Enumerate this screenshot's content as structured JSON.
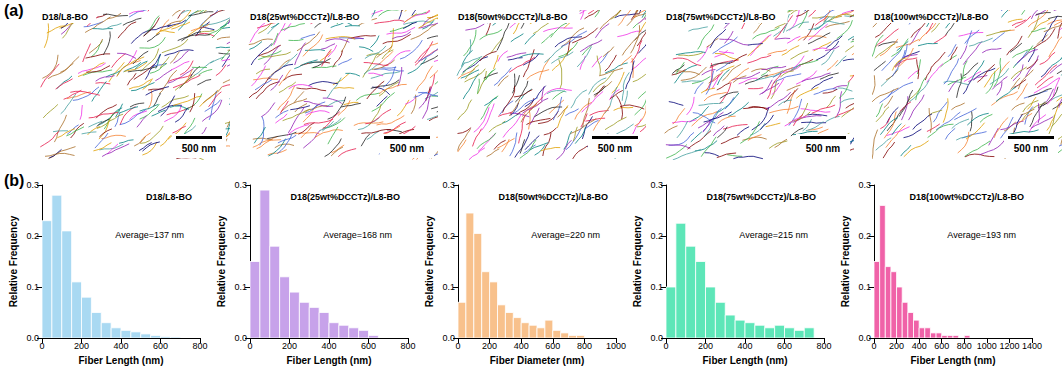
{
  "panel_labels": [
    "(a)",
    "(b)"
  ],
  "images": [
    {
      "title": "D18/L8-BO",
      "scale_bar": "500 nm"
    },
    {
      "title": "D18(25wt%DCCTz)/L8-BO",
      "scale_bar": "500 nm"
    },
    {
      "title": "D18(50wt%DCCTz)/L8-BO",
      "scale_bar": "500 nm"
    },
    {
      "title": "D18(75wt%DCCTz)/L8-BO",
      "scale_bar": "500 nm"
    },
    {
      "title": "D18(100wt%DCCTz)/L8-BO",
      "scale_bar": "500 nm"
    }
  ],
  "chart_data": [
    {
      "type": "histogram",
      "title": "D18/L8-BO",
      "annotation": "Average=137 nm",
      "color": "#a9d9f2",
      "xlabel": "Fiber Length (nm)",
      "ylabel": "Relative Frequency",
      "bins": [
        0,
        50,
        100,
        150,
        200,
        250,
        300,
        350,
        400,
        450,
        500,
        550,
        600,
        650,
        700
      ],
      "counts": [
        0.23,
        0.28,
        0.21,
        0.11,
        0.08,
        0.05,
        0.03,
        0.02,
        0.015,
        0.012,
        0.008,
        0.005,
        0.003,
        0.002
      ],
      "xlim": [
        0,
        800
      ],
      "xticks": [
        0,
        200,
        400,
        600,
        800
      ],
      "ylim": [
        0,
        0.3
      ],
      "yticks": [
        {
          "value": 0,
          "label": "0.0"
        },
        0.1,
        0.2,
        0.3
      ]
    },
    {
      "type": "histogram",
      "title": "D18(25wt%DCCTz)/L8-BO",
      "annotation": "Average=168 nm",
      "color": "#c7a2ea",
      "xlabel": "Fiber Length (nm)",
      "ylabel": "Relative Frequency",
      "bins": [
        0,
        50,
        100,
        150,
        200,
        250,
        300,
        350,
        400,
        450,
        500,
        550,
        600,
        650
      ],
      "counts": [
        0.15,
        0.29,
        0.18,
        0.12,
        0.09,
        0.07,
        0.06,
        0.05,
        0.03,
        0.025,
        0.02,
        0.015,
        0.005
      ],
      "xlim": [
        0,
        800
      ],
      "xticks": [
        0,
        200,
        400,
        600,
        800
      ],
      "ylim": [
        0,
        0.3
      ],
      "yticks": [
        {
          "value": 0,
          "label": "0.0"
        },
        0.1,
        0.2,
        0.3
      ]
    },
    {
      "type": "histogram",
      "title": "D18(50wt%DCCTz)/L8-BO",
      "annotation": "Average=220 nm",
      "color": "#f8c18c",
      "xlabel": "Fiber Diameter (nm)",
      "ylabel": "Relative Frequency",
      "bins": [
        0,
        50,
        100,
        150,
        200,
        250,
        300,
        350,
        400,
        450,
        500,
        550,
        600,
        650,
        700,
        750,
        800
      ],
      "counts": [
        0.07,
        0.245,
        0.205,
        0.13,
        0.11,
        0.065,
        0.05,
        0.04,
        0.03,
        0.025,
        0.02,
        0.035,
        0.015,
        0.01,
        0.005,
        0.005
      ],
      "xlim": [
        0,
        1000
      ],
      "xticks": [
        0,
        200,
        400,
        600,
        800,
        1000
      ],
      "ylim": [
        0,
        0.3
      ],
      "yticks": [
        {
          "value": 0,
          "label": "0.0"
        },
        0.1,
        0.2,
        0.3
      ]
    },
    {
      "type": "histogram",
      "title": "D18(75wt%DCCTz)/L8-BO",
      "annotation": "Average=215 nm",
      "color": "#5de6b8",
      "xlabel": "Fiber Length (nm)",
      "ylabel": "Relative Frequency",
      "bins": [
        0,
        50,
        100,
        150,
        200,
        250,
        300,
        350,
        400,
        450,
        500,
        550,
        600,
        650,
        700,
        750
      ],
      "counts": [
        0.1,
        0.225,
        0.18,
        0.15,
        0.1,
        0.07,
        0.045,
        0.035,
        0.03,
        0.025,
        0.02,
        0.025,
        0.02,
        0.015,
        0.02
      ],
      "xlim": [
        0,
        800
      ],
      "xticks": [
        0,
        200,
        400,
        600,
        800
      ],
      "ylim": [
        0,
        0.3
      ],
      "yticks": [
        {
          "value": 0,
          "label": "0.0"
        },
        0.1,
        0.2,
        0.3
      ]
    },
    {
      "type": "histogram",
      "title": "D18(100wt%DCCTz)/L8-BO",
      "annotation": "Average=193 nm",
      "color": "#f062a8",
      "xlabel": "Fiber Length (nm)",
      "ylabel": "Relative Frequency",
      "bins": [
        0,
        50,
        100,
        150,
        200,
        250,
        300,
        350,
        400,
        450,
        500,
        550,
        600,
        650,
        700,
        750,
        800,
        850
      ],
      "counts": [
        0.15,
        0.26,
        0.14,
        0.13,
        0.1,
        0.07,
        0.05,
        0.035,
        0.02,
        0.02,
        0.01,
        0.01,
        0.005,
        0.005,
        0.005,
        0,
        0.005
      ],
      "xlim": [
        0,
        1400
      ],
      "xticks": [
        0,
        200,
        400,
        600,
        800,
        1000,
        1200,
        1400
      ],
      "ylim": [
        0,
        0.3
      ],
      "yticks": [
        {
          "value": 0,
          "label": "0.0"
        },
        0.1,
        0.2,
        0.3
      ]
    }
  ]
}
